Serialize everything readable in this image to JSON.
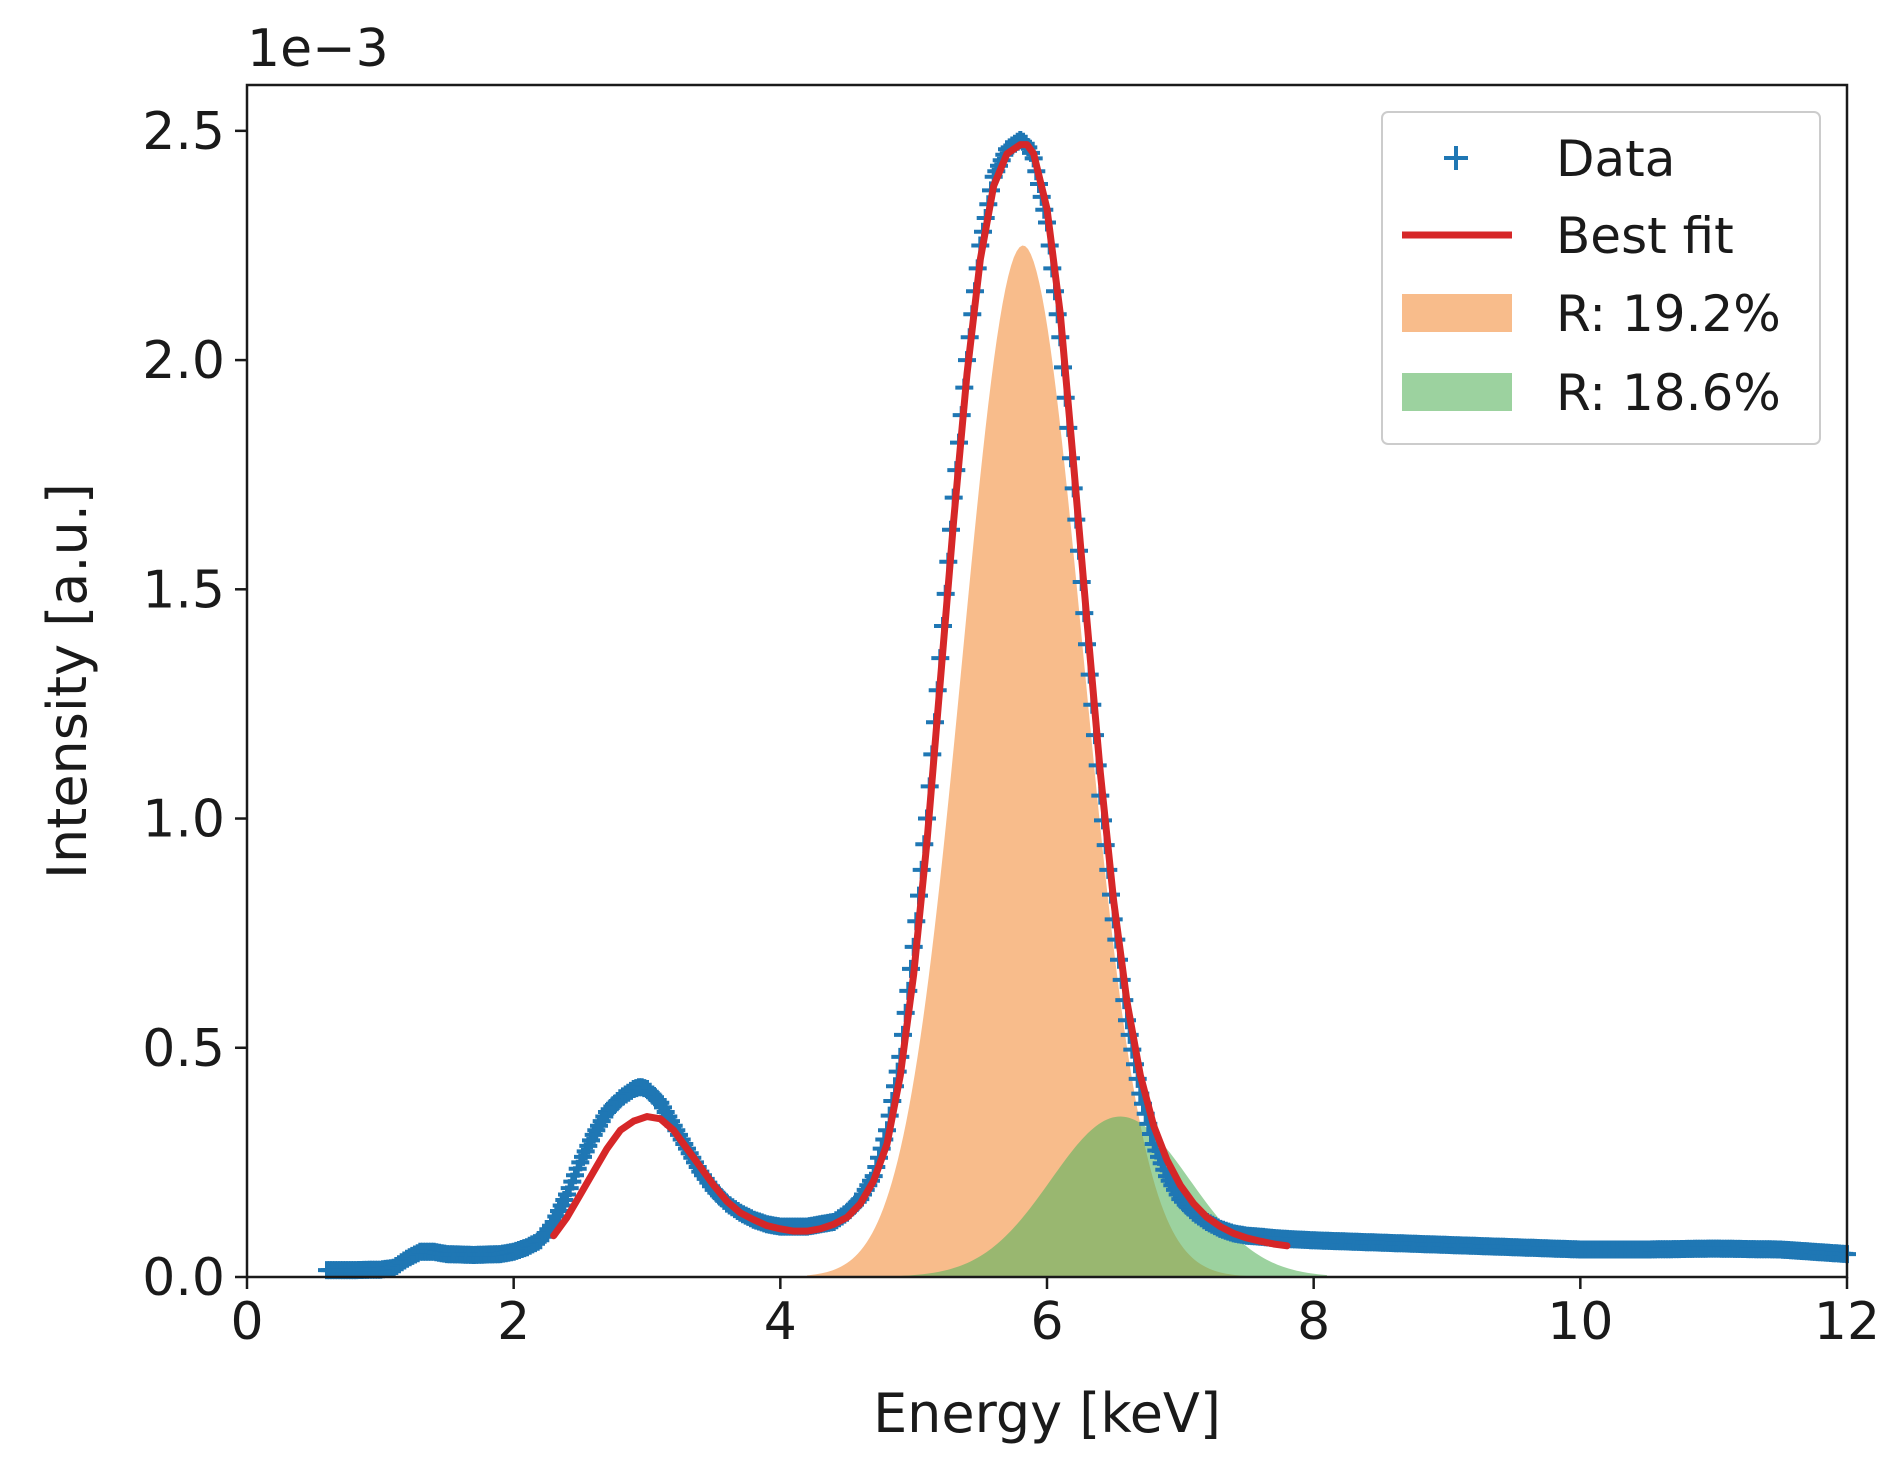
{
  "chart_data": {
    "type": "line",
    "title": "",
    "xlabel": "Energy [keV]",
    "ylabel": "Intensity [a.u.]",
    "offset_text": "1e−3",
    "xlim": [
      0,
      12
    ],
    "ylim": [
      0,
      2.6
    ],
    "x_ticks": [
      0,
      2,
      4,
      6,
      8,
      10,
      12
    ],
    "x_tick_labels": [
      "0",
      "2",
      "4",
      "6",
      "8",
      "10",
      "12"
    ],
    "y_ticks": [
      0.0,
      0.5,
      1.0,
      1.5,
      2.0,
      2.5
    ],
    "y_tick_labels": [
      "0.0",
      "0.5",
      "1.0",
      "1.5",
      "2.0",
      "2.5"
    ],
    "grid": false,
    "legend_position": "upper right",
    "colors": {
      "data": "#1f77b4",
      "fit": "#d62728",
      "peak1": "#f5a05a",
      "peak2": "#5ab45f",
      "axis": "#1a1a1a"
    },
    "legend": [
      {
        "key": "data",
        "label": "Data",
        "kind": "marker"
      },
      {
        "key": "fit",
        "label": "Best fit",
        "kind": "line"
      },
      {
        "key": "peak1",
        "label": "R: 19.2%",
        "kind": "patch"
      },
      {
        "key": "peak2",
        "label": "R: 18.6%",
        "kind": "patch"
      }
    ],
    "series": [
      {
        "name": "Data",
        "kind": "scatter-plus",
        "x": [
          0.6,
          0.8,
          1.0,
          1.1,
          1.2,
          1.3,
          1.4,
          1.5,
          1.7,
          1.9,
          2.0,
          2.1,
          2.2,
          2.3,
          2.4,
          2.5,
          2.6,
          2.7,
          2.8,
          2.9,
          2.95,
          3.0,
          3.1,
          3.2,
          3.3,
          3.4,
          3.5,
          3.6,
          3.7,
          3.8,
          3.9,
          4.0,
          4.1,
          4.2,
          4.3,
          4.4,
          4.5,
          4.6,
          4.7,
          4.8,
          4.9,
          5.0,
          5.1,
          5.2,
          5.3,
          5.4,
          5.5,
          5.6,
          5.7,
          5.8,
          5.85,
          5.9,
          6.0,
          6.1,
          6.2,
          6.3,
          6.4,
          6.5,
          6.6,
          6.7,
          6.8,
          6.9,
          7.0,
          7.1,
          7.2,
          7.3,
          7.4,
          7.5,
          7.6,
          7.7,
          7.8,
          8.0,
          8.5,
          9.0,
          9.5,
          10.0,
          10.5,
          11.0,
          11.5,
          12.0
        ],
        "y": [
          0.015,
          0.015,
          0.016,
          0.02,
          0.04,
          0.055,
          0.055,
          0.05,
          0.048,
          0.05,
          0.055,
          0.065,
          0.08,
          0.12,
          0.18,
          0.25,
          0.31,
          0.36,
          0.39,
          0.41,
          0.415,
          0.41,
          0.38,
          0.33,
          0.28,
          0.23,
          0.19,
          0.16,
          0.14,
          0.125,
          0.115,
          0.11,
          0.11,
          0.11,
          0.115,
          0.12,
          0.14,
          0.17,
          0.22,
          0.32,
          0.48,
          0.72,
          1.0,
          1.35,
          1.7,
          2.0,
          2.25,
          2.4,
          2.46,
          2.48,
          2.47,
          2.44,
          2.3,
          2.05,
          1.72,
          1.38,
          1.05,
          0.78,
          0.56,
          0.4,
          0.29,
          0.22,
          0.17,
          0.14,
          0.12,
          0.105,
          0.095,
          0.09,
          0.088,
          0.085,
          0.083,
          0.08,
          0.075,
          0.07,
          0.065,
          0.06,
          0.06,
          0.062,
          0.06,
          0.05
        ]
      },
      {
        "name": "Best fit",
        "kind": "line",
        "x": [
          2.3,
          2.4,
          2.5,
          2.6,
          2.7,
          2.8,
          2.9,
          3.0,
          3.1,
          3.2,
          3.3,
          3.4,
          3.5,
          3.6,
          3.7,
          3.8,
          3.9,
          4.0,
          4.1,
          4.2,
          4.3,
          4.4,
          4.5,
          4.6,
          4.7,
          4.8,
          4.9,
          5.0,
          5.1,
          5.2,
          5.3,
          5.4,
          5.5,
          5.6,
          5.7,
          5.8,
          5.85,
          5.9,
          6.0,
          6.1,
          6.2,
          6.3,
          6.4,
          6.5,
          6.6,
          6.7,
          6.8,
          6.9,
          7.0,
          7.1,
          7.2,
          7.3,
          7.4,
          7.5,
          7.6,
          7.7,
          7.8
        ],
        "y": [
          0.09,
          0.13,
          0.18,
          0.23,
          0.28,
          0.32,
          0.34,
          0.35,
          0.345,
          0.32,
          0.28,
          0.24,
          0.2,
          0.165,
          0.14,
          0.125,
          0.112,
          0.105,
          0.1,
          0.1,
          0.105,
          0.115,
          0.13,
          0.16,
          0.21,
          0.29,
          0.44,
          0.66,
          0.95,
          1.3,
          1.65,
          1.97,
          2.22,
          2.38,
          2.45,
          2.47,
          2.47,
          2.45,
          2.33,
          2.1,
          1.77,
          1.43,
          1.1,
          0.82,
          0.6,
          0.44,
          0.33,
          0.255,
          0.2,
          0.16,
          0.13,
          0.11,
          0.095,
          0.085,
          0.078,
          0.072,
          0.068
        ]
      },
      {
        "name": "R: 19.2%",
        "kind": "filled-peak",
        "center": 5.82,
        "amplitude": 2.25,
        "sigma": 0.45,
        "range": [
          4.2,
          7.6
        ]
      },
      {
        "name": "R: 18.6%",
        "kind": "filled-peak",
        "center": 6.55,
        "amplitude": 0.35,
        "sigma": 0.52,
        "range": [
          4.8,
          8.1
        ]
      }
    ]
  }
}
